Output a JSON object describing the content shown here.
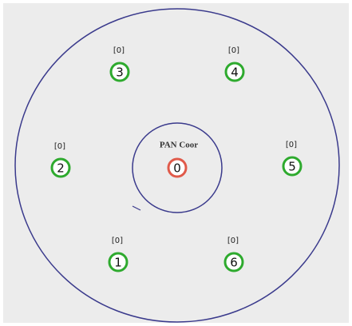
{
  "coordinator": {
    "label": "PAN Coor",
    "id": "0"
  },
  "nodes": [
    {
      "id": "3",
      "count": "[0]"
    },
    {
      "id": "4",
      "count": "[0]"
    },
    {
      "id": "2",
      "count": "[0]"
    },
    {
      "id": "5",
      "count": "[0]"
    },
    {
      "id": "1",
      "count": "[0]"
    },
    {
      "id": "6",
      "count": "[0]"
    }
  ]
}
